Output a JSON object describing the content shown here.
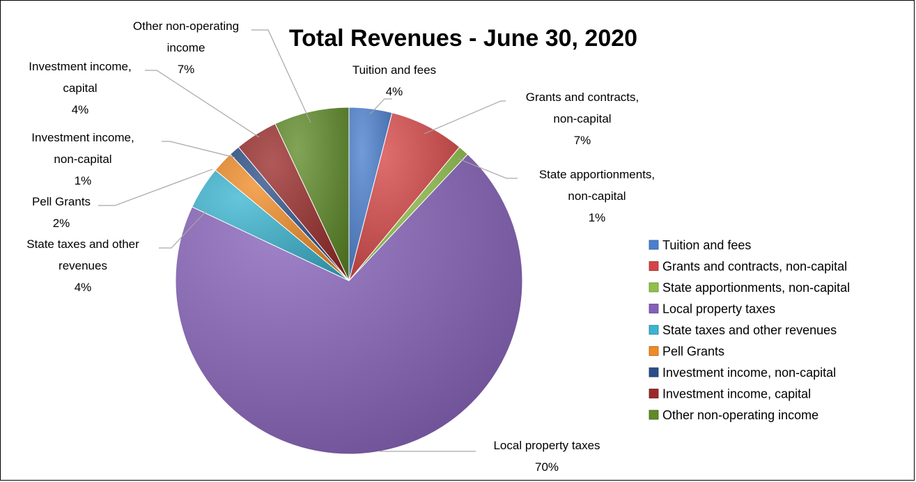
{
  "chart_data": {
    "type": "pie",
    "title": "Total Revenues - June 30, 2020",
    "unit": "%",
    "slices": [
      {
        "name": "Tuition and fees",
        "value": 4,
        "label_lines": [
          "Tuition and fees",
          "4%"
        ],
        "color": "#4a7fd0"
      },
      {
        "name": "Grants and contracts, non-capital",
        "value": 7,
        "label_lines": [
          "Grants and contracts,",
          "non-capital",
          "7%"
        ],
        "color": "#d64545"
      },
      {
        "name": "State apportionments, non-capital",
        "value": 1,
        "label_lines": [
          "State apportionments,",
          "non-capital",
          "1%"
        ],
        "color": "#8fc04a"
      },
      {
        "name": "Local property taxes",
        "value": 70,
        "label_lines": [
          "Local property taxes",
          "70%"
        ],
        "color": "#8560b8"
      },
      {
        "name": "State taxes and other revenues",
        "value": 4,
        "label_lines": [
          "State taxes and other",
          "revenues",
          "4%"
        ],
        "color": "#3ab4d0"
      },
      {
        "name": "Pell Grants",
        "value": 2,
        "label_lines": [
          "Pell Grants",
          "2%"
        ],
        "color": "#f08a24"
      },
      {
        "name": "Investment income, non-capital",
        "value": 1,
        "label_lines": [
          "Investment income,",
          "non-capital",
          "1%"
        ],
        "color": "#2a4e88"
      },
      {
        "name": "Investment income, capital",
        "value": 4,
        "label_lines": [
          "Investment income,",
          "capital",
          "4%"
        ],
        "color": "#9a2a2a"
      },
      {
        "name": "Other non-operating income",
        "value": 7,
        "label_lines": [
          "Other non-operating",
          "income",
          "7%"
        ],
        "color": "#5e8a26"
      }
    ],
    "legend_position": "right"
  }
}
